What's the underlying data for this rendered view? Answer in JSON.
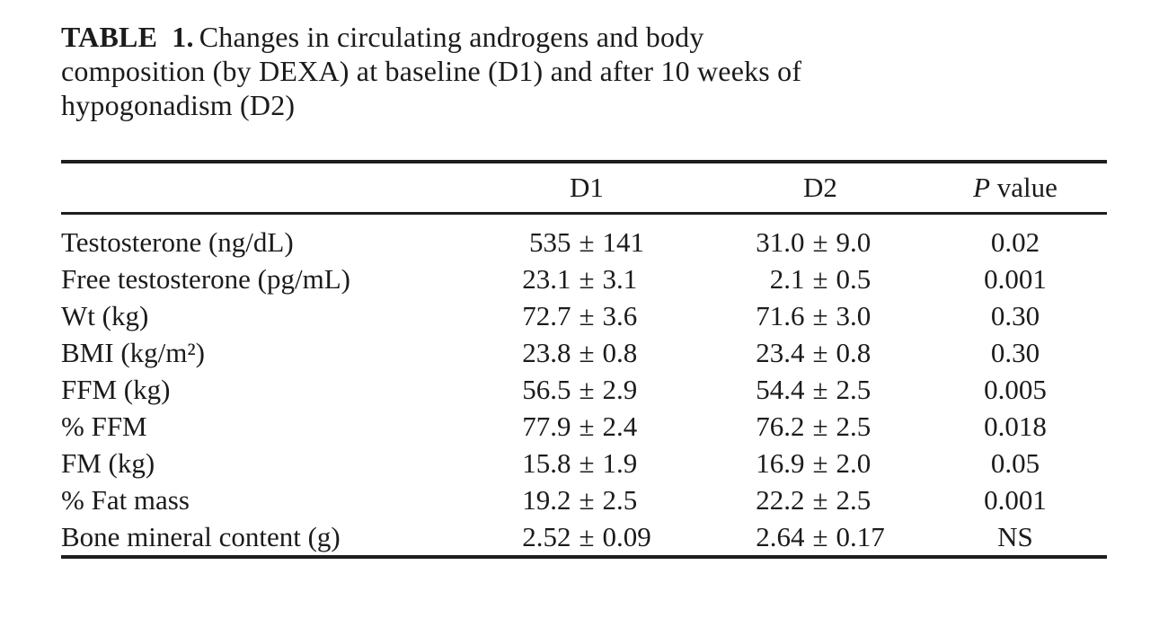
{
  "title": {
    "tag": "TABLE 1.",
    "line1_rest": "Changes in circulating androgens and body",
    "line2": "composition (by DEXA) at baseline (D1) and after 10 weeks of",
    "line3": "hypogonadism (D2)"
  },
  "table": {
    "pm": "±",
    "header": {
      "label": "",
      "d1": "D1",
      "d2": "D2",
      "p_italic": "P",
      "p_rest": "value"
    },
    "rows": [
      {
        "label": "Testosterone (ng/dL)",
        "d1_mean": "535",
        "d1_sd": "141",
        "d2_mean": "31.0",
        "d2_sd": "9.0",
        "p": "0.02"
      },
      {
        "label": "Free testosterone (pg/mL)",
        "d1_mean": "23.1",
        "d1_sd": "3.1",
        "d2_mean": "2.1",
        "d2_sd": "0.5",
        "p": "0.001"
      },
      {
        "label": "Wt (kg)",
        "d1_mean": "72.7",
        "d1_sd": "3.6",
        "d2_mean": "71.6",
        "d2_sd": "3.0",
        "p": "0.30"
      },
      {
        "label": "BMI (kg/m²)",
        "d1_mean": "23.8",
        "d1_sd": "0.8",
        "d2_mean": "23.4",
        "d2_sd": "0.8",
        "p": "0.30"
      },
      {
        "label": "FFM (kg)",
        "d1_mean": "56.5",
        "d1_sd": "2.9",
        "d2_mean": "54.4",
        "d2_sd": "2.5",
        "p": "0.005"
      },
      {
        "label": "% FFM",
        "d1_mean": "77.9",
        "d1_sd": "2.4",
        "d2_mean": "76.2",
        "d2_sd": "2.5",
        "p": "0.018"
      },
      {
        "label": "FM (kg)",
        "d1_mean": "15.8",
        "d1_sd": "1.9",
        "d2_mean": "16.9",
        "d2_sd": "2.0",
        "p": "0.05"
      },
      {
        "label": "% Fat mass",
        "d1_mean": "19.2",
        "d1_sd": "2.5",
        "d2_mean": "22.2",
        "d2_sd": "2.5",
        "p": "0.001"
      },
      {
        "label": "Bone mineral content (g)",
        "d1_mean": "2.52",
        "d1_sd": "0.09",
        "d2_mean": "2.64",
        "d2_sd": "0.17",
        "p": "NS"
      }
    ],
    "ink_color": "#1b1b1b",
    "background_color": "#ffffff"
  }
}
